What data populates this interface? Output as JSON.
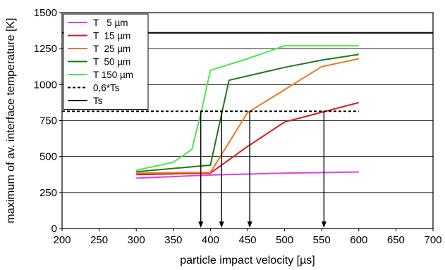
{
  "chart_data": {
    "type": "line",
    "title": "",
    "xlabel": "particle impact velocity [µs]",
    "ylabel": "maximum of av. interface temperature [K]",
    "xlim": [
      200,
      700
    ],
    "ylim": [
      0,
      1500
    ],
    "xticks": [
      200,
      250,
      300,
      350,
      400,
      450,
      500,
      550,
      600,
      650,
      700
    ],
    "yticks": [
      0,
      250,
      500,
      750,
      1000,
      1250,
      1500
    ],
    "grid": "horizontal",
    "legend_position": "top-left",
    "series": [
      {
        "name": "T   5 µm",
        "color": "#e040e0",
        "dash": false,
        "x": [
          300,
          400,
          500,
          600
        ],
        "y": [
          350,
          372,
          385,
          393
        ]
      },
      {
        "name": "T  15 µm",
        "color": "#d81c1c",
        "dash": false,
        "x": [
          300,
          400,
          450,
          500,
          600
        ],
        "y": [
          375,
          385,
          570,
          740,
          875
        ]
      },
      {
        "name": "T  25 µm",
        "color": "#f07820",
        "dash": false,
        "x": [
          300,
          400,
          450,
          500,
          550,
          600
        ],
        "y": [
          385,
          390,
          805,
          965,
          1125,
          1180
        ]
      },
      {
        "name": "T  50 µm",
        "color": "#1c7a1c",
        "dash": false,
        "x": [
          300,
          400,
          425,
          500,
          550,
          600
        ],
        "y": [
          395,
          440,
          1030,
          1120,
          1170,
          1210
        ]
      },
      {
        "name": "T 150 µm",
        "color": "#4ce84c",
        "dash": false,
        "x": [
          300,
          350,
          375,
          388,
          400,
          450,
          500,
          600
        ],
        "y": [
          405,
          460,
          550,
          820,
          1100,
          1180,
          1270,
          1270
        ]
      },
      {
        "name": "0,6*Ts",
        "color": "#000000",
        "dash": true,
        "x": [
          200,
          600
        ],
        "y": [
          815,
          815
        ]
      },
      {
        "name": "Ts",
        "color": "#000000",
        "dash": false,
        "x": [
          200,
          700
        ],
        "y": [
          1360,
          1360
        ]
      }
    ],
    "arrows": [
      {
        "x": 387,
        "from": 815,
        "to": 0
      },
      {
        "x": 415,
        "from": 815,
        "to": 0
      },
      {
        "x": 453,
        "from": 815,
        "to": 0
      },
      {
        "x": 553,
        "from": 815,
        "to": 0
      }
    ]
  }
}
